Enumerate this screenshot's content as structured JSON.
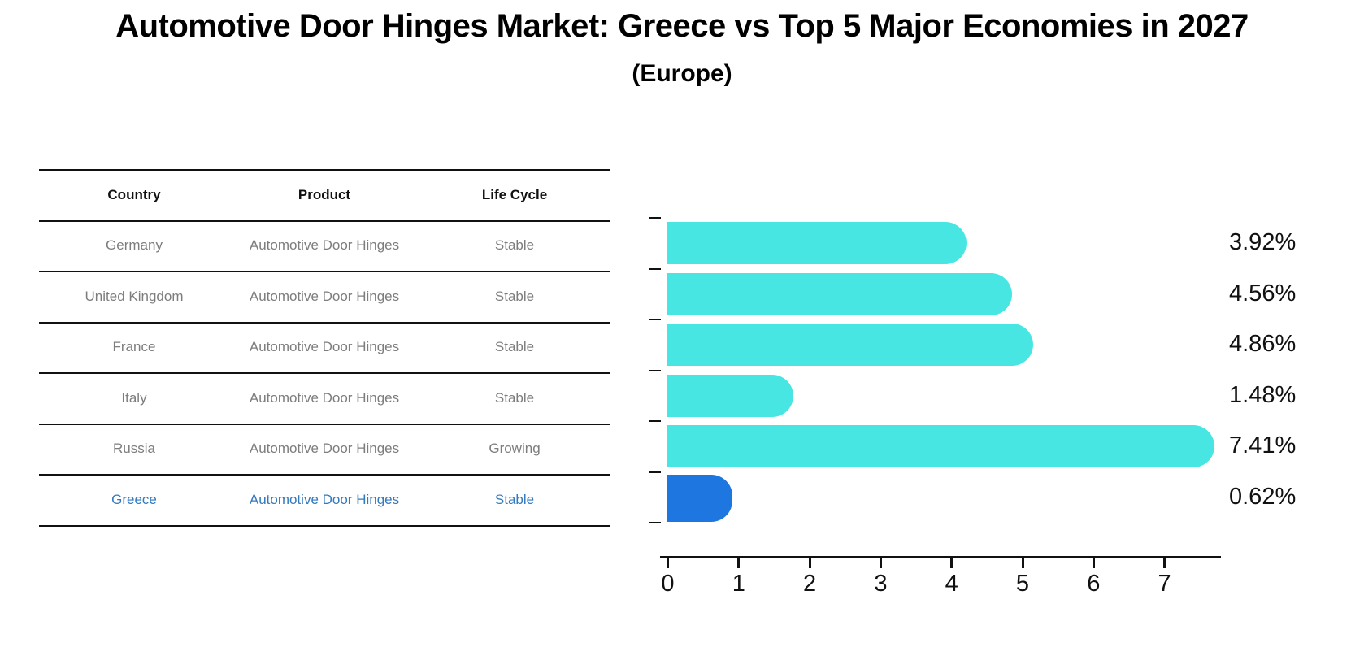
{
  "title": "Automotive Door Hinges Market: Greece vs Top 5 Major Economies in 2027",
  "subtitle": "(Europe)",
  "table": {
    "headers": [
      "Country",
      "Product",
      "Life Cycle"
    ],
    "rows": [
      {
        "country": "Germany",
        "product": "Automotive Door Hinges",
        "life_cycle": "Stable",
        "highlight": false
      },
      {
        "country": "United Kingdom",
        "product": "Automotive Door Hinges",
        "life_cycle": "Stable",
        "highlight": false
      },
      {
        "country": "France",
        "product": "Automotive Door Hinges",
        "life_cycle": "Stable",
        "highlight": false
      },
      {
        "country": "Italy",
        "product": "Automotive Door Hinges",
        "life_cycle": "Stable",
        "highlight": false
      },
      {
        "country": "Russia",
        "product": "Automotive Door Hinges",
        "life_cycle": "Growing",
        "highlight": false
      },
      {
        "country": "Greece",
        "product": "Automotive Door Hinges",
        "life_cycle": "Stable",
        "highlight": true
      }
    ]
  },
  "chart_data": {
    "type": "bar",
    "orientation": "horizontal",
    "categories": [
      "Germany",
      "United Kingdom",
      "France",
      "Italy",
      "Russia",
      "Greece"
    ],
    "values": [
      3.92,
      4.56,
      4.86,
      1.48,
      7.41,
      0.62
    ],
    "value_labels": [
      "3.92%",
      "4.56%",
      "4.86%",
      "1.48%",
      "7.41%",
      "0.62%"
    ],
    "x_ticks": [
      "0",
      "1",
      "2",
      "3",
      "4",
      "5",
      "6",
      "7"
    ],
    "xlim": [
      0,
      7.8
    ],
    "grid": false,
    "legend": "none",
    "bar_color": "#47E6E3",
    "highlight_color": "#1E77E0",
    "highlight_border_color": "#1E77E0",
    "highlight_index": 5,
    "highlight_text_color": "#3279be",
    "row_text_color": "#7d7d7d"
  }
}
